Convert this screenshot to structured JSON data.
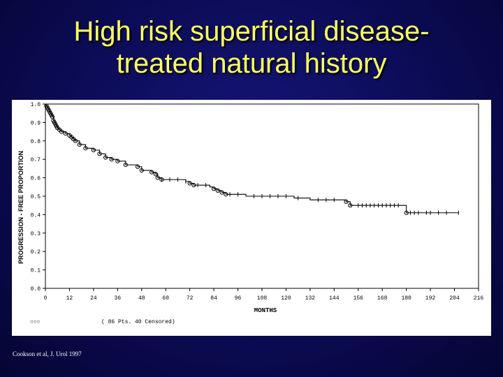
{
  "slide": {
    "title_line1": "High risk superficial disease-",
    "title_line2": "treated natural history",
    "citation": "Cookson et al, J. Urol 1997"
  },
  "chart_data": {
    "type": "line",
    "step": true,
    "title": "",
    "xlabel": "MONTHS",
    "ylabel": "PROGRESSION - FREE PROPORTION",
    "xlim": [
      0,
      216
    ],
    "ylim": [
      0,
      1.0
    ],
    "x_ticks": [
      0,
      12,
      24,
      36,
      48,
      60,
      72,
      84,
      96,
      108,
      120,
      132,
      144,
      156,
      168,
      180,
      192,
      204,
      216
    ],
    "y_ticks": [
      0.0,
      0.1,
      0.2,
      0.3,
      0.4,
      0.5,
      0.6,
      0.7,
      0.8,
      0.9,
      1.0
    ],
    "y_tick_labels": [
      "0.0",
      "0.1",
      "0.2",
      "0.3",
      "0.4",
      "0.5",
      "0.6",
      "0.7",
      "0.8",
      "0.9",
      "1.0"
    ],
    "legend": {
      "symbol_text": "○○○",
      "label": "( 86 Pts.  40 Censored)"
    },
    "series": [
      {
        "x": [
          0,
          0.5,
          1,
          1.5,
          2,
          2.5,
          3,
          3.5,
          4,
          4.5,
          5,
          5.5,
          6,
          7,
          8,
          9,
          10,
          11,
          12,
          13,
          14,
          15,
          17,
          20,
          24,
          27,
          30,
          33,
          36,
          40,
          44,
          46,
          48,
          53,
          55,
          56,
          58,
          60,
          70,
          72,
          74,
          82,
          84,
          86,
          88,
          90,
          100,
          124,
          132,
          150,
          152,
          180,
          206
        ],
        "y": [
          1.0,
          0.99,
          0.98,
          0.97,
          0.96,
          0.95,
          0.94,
          0.93,
          0.91,
          0.9,
          0.89,
          0.88,
          0.87,
          0.86,
          0.85,
          0.85,
          0.84,
          0.84,
          0.83,
          0.82,
          0.81,
          0.8,
          0.78,
          0.76,
          0.75,
          0.73,
          0.71,
          0.7,
          0.69,
          0.67,
          0.67,
          0.66,
          0.64,
          0.63,
          0.62,
          0.6,
          0.59,
          0.59,
          0.58,
          0.57,
          0.56,
          0.55,
          0.54,
          0.53,
          0.52,
          0.51,
          0.5,
          0.49,
          0.48,
          0.47,
          0.45,
          0.41,
          0.41
        ]
      }
    ],
    "event_marks": [
      {
        "x": 0.5,
        "y": 0.99
      },
      {
        "x": 1,
        "y": 0.98
      },
      {
        "x": 1.5,
        "y": 0.97
      },
      {
        "x": 2,
        "y": 0.96
      },
      {
        "x": 2.5,
        "y": 0.95
      },
      {
        "x": 3,
        "y": 0.94
      },
      {
        "x": 3.5,
        "y": 0.93
      },
      {
        "x": 4,
        "y": 0.91
      },
      {
        "x": 4.5,
        "y": 0.9
      },
      {
        "x": 5,
        "y": 0.89
      },
      {
        "x": 5.5,
        "y": 0.88
      },
      {
        "x": 6,
        "y": 0.87
      },
      {
        "x": 7,
        "y": 0.86
      },
      {
        "x": 8,
        "y": 0.85
      },
      {
        "x": 10,
        "y": 0.84
      },
      {
        "x": 12,
        "y": 0.83
      },
      {
        "x": 13,
        "y": 0.82
      },
      {
        "x": 14,
        "y": 0.81
      },
      {
        "x": 15,
        "y": 0.8
      },
      {
        "x": 17,
        "y": 0.78
      },
      {
        "x": 20,
        "y": 0.76
      },
      {
        "x": 24,
        "y": 0.75
      },
      {
        "x": 27,
        "y": 0.73
      },
      {
        "x": 30,
        "y": 0.71
      },
      {
        "x": 33,
        "y": 0.7
      },
      {
        "x": 36,
        "y": 0.69
      },
      {
        "x": 40,
        "y": 0.67
      },
      {
        "x": 46,
        "y": 0.66
      },
      {
        "x": 48,
        "y": 0.64
      },
      {
        "x": 53,
        "y": 0.63
      },
      {
        "x": 55,
        "y": 0.62
      },
      {
        "x": 56,
        "y": 0.6
      },
      {
        "x": 58,
        "y": 0.59
      },
      {
        "x": 72,
        "y": 0.57
      },
      {
        "x": 74,
        "y": 0.56
      },
      {
        "x": 84,
        "y": 0.54
      },
      {
        "x": 86,
        "y": 0.53
      },
      {
        "x": 88,
        "y": 0.52
      },
      {
        "x": 90,
        "y": 0.51
      },
      {
        "x": 150,
        "y": 0.47
      },
      {
        "x": 152,
        "y": 0.45
      },
      {
        "x": 180,
        "y": 0.41
      }
    ],
    "censor_marks": [
      {
        "x": 58,
        "y": 0.59
      },
      {
        "x": 62,
        "y": 0.59
      },
      {
        "x": 66,
        "y": 0.59
      },
      {
        "x": 70,
        "y": 0.58
      },
      {
        "x": 76,
        "y": 0.56
      },
      {
        "x": 80,
        "y": 0.56
      },
      {
        "x": 92,
        "y": 0.51
      },
      {
        "x": 96,
        "y": 0.51
      },
      {
        "x": 104,
        "y": 0.5
      },
      {
        "x": 108,
        "y": 0.5
      },
      {
        "x": 112,
        "y": 0.5
      },
      {
        "x": 116,
        "y": 0.5
      },
      {
        "x": 120,
        "y": 0.5
      },
      {
        "x": 126,
        "y": 0.49
      },
      {
        "x": 136,
        "y": 0.48
      },
      {
        "x": 140,
        "y": 0.48
      },
      {
        "x": 144,
        "y": 0.48
      },
      {
        "x": 156,
        "y": 0.45
      },
      {
        "x": 158,
        "y": 0.45
      },
      {
        "x": 160,
        "y": 0.45
      },
      {
        "x": 162,
        "y": 0.45
      },
      {
        "x": 164,
        "y": 0.45
      },
      {
        "x": 166,
        "y": 0.45
      },
      {
        "x": 168,
        "y": 0.45
      },
      {
        "x": 170,
        "y": 0.45
      },
      {
        "x": 172,
        "y": 0.45
      },
      {
        "x": 174,
        "y": 0.45
      },
      {
        "x": 176,
        "y": 0.45
      },
      {
        "x": 182,
        "y": 0.41
      },
      {
        "x": 184,
        "y": 0.41
      },
      {
        "x": 186,
        "y": 0.41
      },
      {
        "x": 190,
        "y": 0.41
      },
      {
        "x": 192,
        "y": 0.41
      },
      {
        "x": 196,
        "y": 0.41
      },
      {
        "x": 200,
        "y": 0.41
      },
      {
        "x": 206,
        "y": 0.41
      }
    ],
    "colors": {
      "title": "#ffff66",
      "background": "#0b0b55",
      "plot_bg": "#ffffff",
      "line": "#000000"
    }
  }
}
